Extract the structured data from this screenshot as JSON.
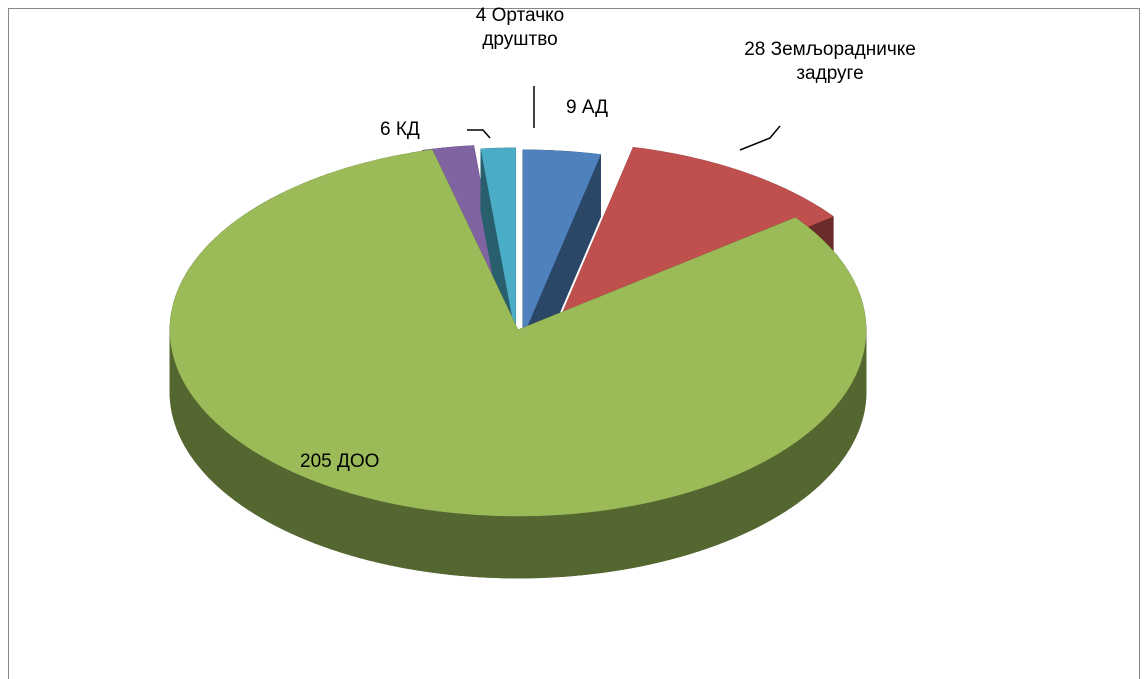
{
  "chart_data": {
    "type": "pie",
    "three_d": true,
    "values": [
      9,
      28,
      205,
      6,
      4
    ],
    "value_labels": [
      "9 АД",
      "28 Земљорадничке задруге",
      "205 ДОО",
      "6 КД",
      "4 Ортачко друштво"
    ],
    "colors": [
      "#4f81bd",
      "#c0504d",
      "#9bbb59",
      "#8064a2",
      "#4bacc6"
    ]
  }
}
